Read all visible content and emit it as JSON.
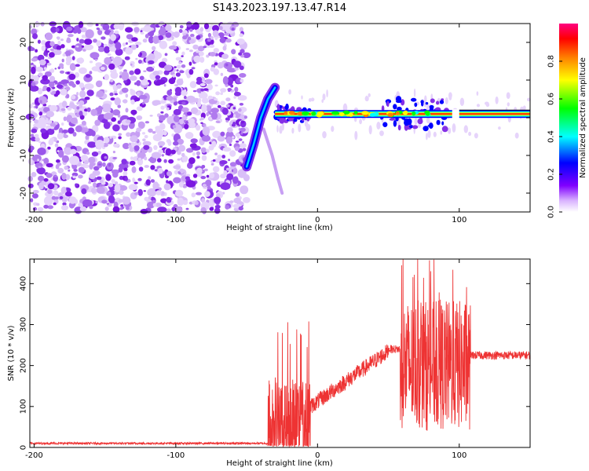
{
  "title": "S143.2023.197.13.47.R14",
  "chart_data": [
    {
      "type": "heatmap",
      "xlabel": "Height of straight line (km)",
      "ylabel": "Frequency (Hz)",
      "xlim": [
        -203,
        150
      ],
      "ylim": [
        -25,
        25
      ],
      "x_ticks": [
        -200,
        -100,
        0,
        100
      ],
      "y_ticks": [
        -20,
        -10,
        0,
        10,
        20
      ],
      "colorbar": {
        "label": "Normalized spectral amplitude",
        "range": [
          0,
          1
        ],
        "ticks": [
          0.0,
          0.2,
          0.4,
          0.6,
          0.8
        ],
        "colormap": [
          "#ffffff",
          "#8000ff",
          "#0000ff",
          "#00ffff",
          "#00ff00",
          "#ffff00",
          "#ff8000",
          "#ff0000",
          "#ff0080"
        ]
      },
      "features": [
        {
          "description": "diffuse noise",
          "x": [
            -203,
            -50
          ],
          "y": [
            -25,
            25
          ],
          "amplitude": 0.1
        },
        {
          "description": "descending trace",
          "points": [
            [
              -50,
              -13
            ],
            [
              -45,
              -7
            ],
            [
              -40,
              0
            ],
            [
              -35,
              5
            ],
            [
              -30,
              8
            ]
          ]
        },
        {
          "description": "falling tail",
          "points": [
            [
              -38,
              -3
            ],
            [
              -32,
              -10
            ],
            [
              -28,
              -16
            ],
            [
              -25,
              -20
            ]
          ]
        },
        {
          "description": "carrier line near 1 Hz",
          "x": [
            -30,
            150
          ],
          "y": 1,
          "amplitude": 0.9
        }
      ]
    },
    {
      "type": "line",
      "xlabel": "Height of straight line (km)",
      "ylabel": "SNR (10 * v/v)",
      "xlim": [
        -203,
        150
      ],
      "ylim": [
        0,
        460
      ],
      "x_ticks": [
        -200,
        -100,
        0,
        100
      ],
      "y_ticks": [
        0,
        100,
        200,
        300,
        400
      ],
      "color": "#ee3333",
      "segments": [
        {
          "x": [
            -203,
            -35
          ],
          "level": 10,
          "spread": 5
        },
        {
          "x": [
            -35,
            -5
          ],
          "level": 60,
          "spread": 150,
          "peak": 310
        },
        {
          "x": [
            -5,
            50
          ],
          "from": 100,
          "to": 235,
          "spread": 40
        },
        {
          "x": [
            50,
            58
          ],
          "level": 240,
          "spread": 20
        },
        {
          "x": [
            58,
            108
          ],
          "level": 200,
          "spread": 200,
          "peak": 460
        },
        {
          "x": [
            108,
            150
          ],
          "level": 225,
          "spread": 20
        }
      ]
    }
  ]
}
